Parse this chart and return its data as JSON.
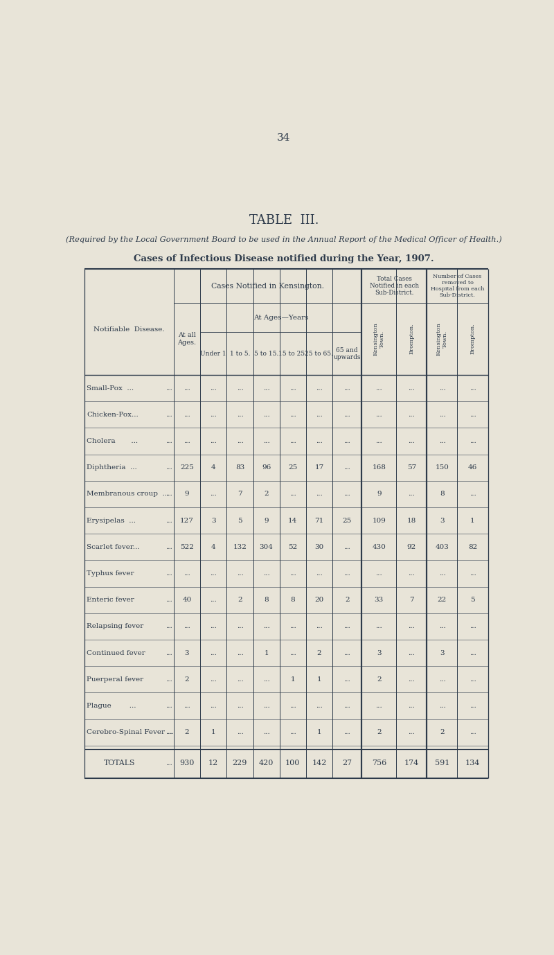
{
  "page_number": "34",
  "title": "TABLE  III.",
  "subtitle1": "(Required by the Local Government Board to be used in the Annual Report of the Medical Officer of Health.)",
  "subtitle2": "Cases of Infectious Disease notified during the Year, 1907.",
  "bg_color": "#e8e4d8",
  "text_color": "#2d3a4a",
  "diseases": [
    "Small-Pox  ...",
    "Chicken-Pox...",
    "Cholera       ...",
    "Diphtheria  ...",
    "Membranous croup  ...",
    "Erysipelas  ...",
    "Scarlet fever...",
    "Typhus fever",
    "Enteric fever",
    "Relapsing fever",
    "Continued fever",
    "Puerperal fever",
    "Plague        ...",
    "Cerebro-Spinal Fever ..."
  ],
  "disease_trailing_dots": [
    "...",
    "...",
    "...",
    "...",
    "...",
    "...",
    "...",
    "...",
    "...",
    "...",
    "...",
    "...",
    "...",
    "..."
  ],
  "data": [
    [
      "...",
      "...",
      "...",
      "...",
      "...",
      "...",
      "...",
      "...",
      "...",
      "...",
      "..."
    ],
    [
      "...",
      "...",
      "...",
      "...",
      "...",
      "...",
      "...",
      "...",
      "...",
      "...",
      "..."
    ],
    [
      "...",
      "...",
      "...",
      "...",
      "...",
      "...",
      "...",
      "...",
      "...",
      "...",
      "..."
    ],
    [
      "225",
      "4",
      "83",
      "96",
      "25",
      "17",
      "...",
      "168",
      "57",
      "150",
      "46"
    ],
    [
      "9",
      "...",
      "7",
      "2",
      "...",
      "...",
      "...",
      "9",
      "...",
      "8",
      "..."
    ],
    [
      "127",
      "3",
      "5",
      "9",
      "14",
      "71",
      "25",
      "109",
      "18",
      "3",
      "1"
    ],
    [
      "522",
      "4",
      "132",
      "304",
      "52",
      "30",
      "...",
      "430",
      "92",
      "403",
      "82"
    ],
    [
      "...",
      "...",
      "...",
      "...",
      "...",
      "...",
      "...",
      "...",
      "...",
      "...",
      "..."
    ],
    [
      "40",
      "...",
      "2",
      "8",
      "8",
      "20",
      "2",
      "33",
      "7",
      "22",
      "5"
    ],
    [
      "...",
      "...",
      "...",
      "...",
      "...",
      "...",
      "...",
      "...",
      "...",
      "...",
      "..."
    ],
    [
      "3",
      "...",
      "...",
      "1",
      "...",
      "2",
      "...",
      "3",
      "...",
      "3",
      "..."
    ],
    [
      "2",
      "...",
      "...",
      "...",
      "1",
      "1",
      "...",
      "2",
      "...",
      "...",
      "..."
    ],
    [
      "...",
      "...",
      "...",
      "...",
      "...",
      "...",
      "...",
      "...",
      "...",
      "...",
      "..."
    ],
    [
      "2",
      "1",
      "...",
      "...",
      "...",
      "1",
      "...",
      "2",
      "...",
      "2",
      "..."
    ]
  ],
  "totals": [
    "930",
    "12",
    "229",
    "420",
    "100",
    "142",
    "27",
    "756",
    "174",
    "591",
    "134"
  ],
  "notifiable_disease_label": "Notifiable  Disease.",
  "col_group1_label": "Cases Notified in Kensington.",
  "col_group2_label": "Total Cases\nNotified in each\nSub-District.",
  "col_group3_label": "Number of Cases\nremoved to\nHospital from each\nSub-District.",
  "at_ages_years_label": "At Ages—Years",
  "at_all_ages_label": "At all\nAges.",
  "age_col_labels": [
    "Under 1",
    "1 to 5.",
    "5 to 15.",
    "15 to 25.",
    "25 to 65.",
    "65 and\nupwards"
  ],
  "rotated_col_labels": [
    "Kensington\nTown.",
    "Brompton.",
    "Kensington\nTown.",
    "Brompton."
  ],
  "totals_label": "Totals",
  "totals_dots": "..."
}
